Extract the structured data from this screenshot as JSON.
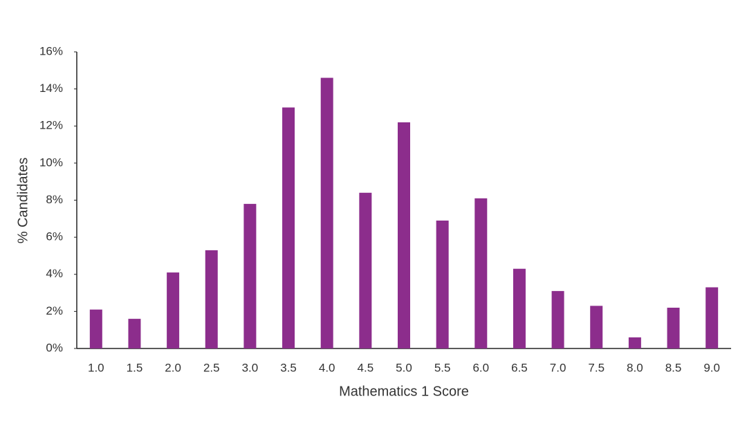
{
  "chart_data": {
    "type": "bar",
    "x_label": "Mathematics 1 Score",
    "y_label": "% Candidates",
    "categories": [
      "1.0",
      "1.5",
      "2.0",
      "2.5",
      "3.0",
      "3.5",
      "4.0",
      "4.5",
      "5.0",
      "5.5",
      "6.0",
      "6.5",
      "7.0",
      "7.5",
      "8.0",
      "8.5",
      "9.0"
    ],
    "values": [
      2.1,
      1.6,
      4.1,
      5.3,
      7.8,
      13.0,
      14.6,
      8.4,
      12.2,
      6.9,
      8.1,
      4.3,
      3.1,
      2.3,
      0.6,
      2.2,
      3.3
    ],
    "color": "#8c2d8c",
    "ylim": [
      0,
      16
    ],
    "yticks": [
      {
        "value": 0,
        "label": "0%"
      },
      {
        "value": 2,
        "label": "2%"
      },
      {
        "value": 4,
        "label": "4%"
      },
      {
        "value": 6,
        "label": "6%"
      },
      {
        "value": 8,
        "label": "8%"
      },
      {
        "value": 10,
        "label": "10%"
      },
      {
        "value": 12,
        "label": "12%"
      },
      {
        "value": 14,
        "label": "14%"
      },
      {
        "value": 16,
        "label": "16%"
      }
    ],
    "grid": false
  }
}
